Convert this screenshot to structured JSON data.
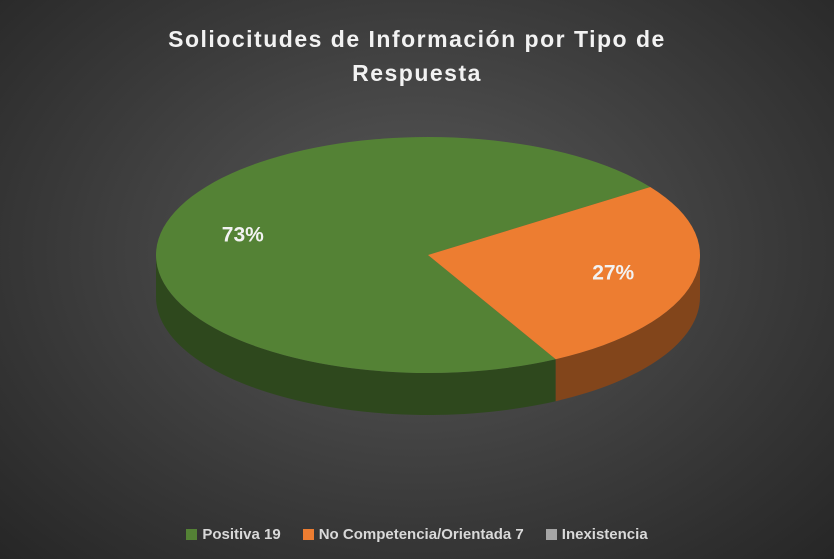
{
  "chart_data": {
    "type": "pie",
    "title": "Soliocitudes de Información por Tipo de Respuesta",
    "categories": [
      "Positiva 19",
      "No Competencia/Orientada 7",
      "Inexistencia"
    ],
    "values": [
      73,
      27,
      0
    ],
    "value_labels": [
      "73%",
      "27%",
      null
    ],
    "colors": [
      "#548235",
      "#ed7d31",
      "#a5a5a5"
    ],
    "legend": "bottom"
  }
}
